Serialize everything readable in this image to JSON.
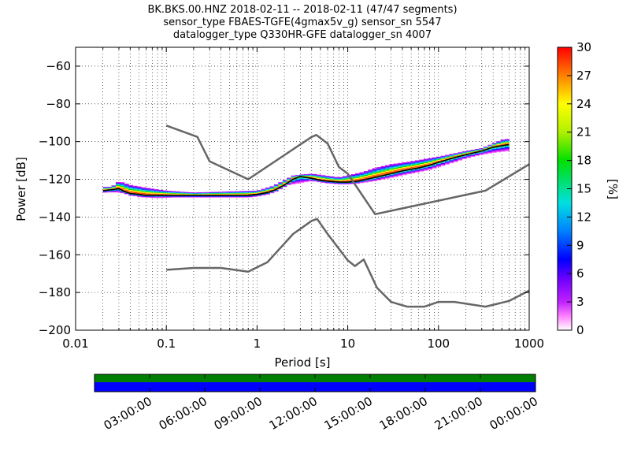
{
  "chart_data": {
    "type": "heatmap",
    "title_lines": [
      "BK.BKS.00.HNZ   2018-02-11 -- 2018-02-11  (47/47 segments)",
      "sensor_type FBAES-TGFE(4gmax5v_g) sensor_sn 5547",
      "datalogger_type Q330HR-GFE datalogger_sn 4007"
    ],
    "xlabel": "Period [s]",
    "ylabel": "Power [dB]",
    "x_scale": "log",
    "xlim": [
      0.01,
      1000
    ],
    "ylim": [
      -200,
      -50
    ],
    "x_ticks": [
      0.01,
      0.1,
      1,
      10,
      100,
      1000
    ],
    "x_tick_labels": [
      "0.01",
      "0.1",
      "1",
      "10",
      "100",
      "1000"
    ],
    "y_ticks": [
      -200,
      -180,
      -160,
      -140,
      -120,
      -100,
      -80,
      -60
    ],
    "y_tick_labels": [
      "−200",
      "−180",
      "−160",
      "−140",
      "−120",
      "−100",
      "−80",
      "−60"
    ],
    "grid": true,
    "colorbar": {
      "label": "[%]",
      "range": [
        0,
        30
      ],
      "ticks": [
        0,
        3,
        6,
        9,
        12,
        15,
        18,
        21,
        24,
        27,
        30
      ],
      "tick_labels": [
        "0",
        "3",
        "6",
        "9",
        "12",
        "15",
        "18",
        "21",
        "24",
        "27",
        "30"
      ]
    },
    "model_curves": [
      {
        "x": [
          0.1,
          0.22,
          0.3,
          0.8,
          4.0,
          4.5,
          6.0,
          8.0,
          10.0,
          20.0,
          330.0,
          1000.0
        ],
        "y": [
          -91.5,
          -97.5,
          -110.5,
          -120,
          -97.5,
          -96.5,
          -101,
          -113.5,
          -117,
          -138.5,
          -126,
          -112
        ]
      },
      {
        "x": [
          0.1,
          0.2,
          0.4,
          0.8,
          1.3,
          2.5,
          4.0,
          4.6,
          6.0,
          10.0,
          12.0,
          15.0,
          21.0,
          30.0,
          45.0,
          70.0,
          100.0,
          150.0,
          330.0,
          600.0,
          1000.0
        ],
        "y": [
          -168,
          -167,
          -167,
          -169,
          -164,
          -149,
          -142,
          -141,
          -149,
          -163,
          -166,
          -162.5,
          -177.5,
          -185,
          -187.5,
          -187.5,
          -185,
          -185,
          -187.5,
          -184.5,
          -179
        ]
      }
    ],
    "ppsd_mode": {
      "x": [
        0.02,
        0.025,
        0.03,
        0.035,
        0.04,
        0.05,
        0.06,
        0.08,
        0.1,
        0.15,
        0.2,
        0.3,
        0.5,
        0.8,
        1.0,
        1.3,
        1.6,
        2.0,
        2.5,
        3.0,
        4.0,
        5.0,
        6.0,
        8.0,
        10.0,
        13.0,
        16.0,
        20.0,
        30.0,
        40.0,
        60.0,
        80.0,
        100.0,
        150.0,
        200.0,
        300.0,
        400.0,
        600.0
      ],
      "y": [
        -126,
        -125.5,
        -125,
        -126.5,
        -127.5,
        -128,
        -128.5,
        -128.5,
        -128.5,
        -128.5,
        -128.5,
        -128.5,
        -128.5,
        -128.5,
        -128,
        -127,
        -125.5,
        -123,
        -120,
        -118.5,
        -119.5,
        -120.5,
        -121,
        -121.5,
        -121.5,
        -121,
        -120,
        -119,
        -117,
        -115.5,
        -114,
        -112.5,
        -111,
        -108.5,
        -107,
        -105,
        -103,
        -101.5
      ]
    },
    "ppsd_upper_spread": {
      "x": [
        0.025,
        0.03,
        0.04,
        0.06,
        0.1,
        0.2,
        1.0,
        1.5,
        2.5,
        4.0,
        8.0,
        15.0,
        20.0,
        30.0,
        50.0,
        100.0,
        200.0,
        300.0,
        500.0,
        600.0
      ],
      "y": [
        -124,
        -121,
        -123,
        -124.5,
        -126,
        -127,
        -126,
        -123.5,
        -118,
        -117,
        -119,
        -116,
        -114,
        -112,
        -110.5,
        -108,
        -105,
        -103.5,
        -99,
        -98.5
      ]
    },
    "ppsd_lower_spread": {
      "x": [
        0.03,
        0.05,
        0.08,
        0.15,
        0.5,
        1.0,
        2.0,
        4.0,
        7.0,
        12.0,
        20.0,
        40.0,
        80.0,
        150.0,
        200.0,
        300.0,
        400.0,
        600.0
      ],
      "y": [
        -127,
        -129.5,
        -130,
        -129.5,
        -129,
        -128.5,
        -123.5,
        -121,
        -122.5,
        -122.5,
        -121,
        -118,
        -115,
        -111,
        -109,
        -107,
        -106,
        -105
      ]
    },
    "timeline": {
      "tick_labels": [
        "03:00:00",
        "06:00:00",
        "09:00:00",
        "12:00:00",
        "15:00:00",
        "18:00:00",
        "21:00:00",
        "00:00:00"
      ],
      "top_band_color": "#007f00",
      "bottom_band_color": "#0000ff"
    },
    "colors": {
      "model_curve": "#666666",
      "mode_line": "#000000",
      "grid": "#000000"
    }
  }
}
